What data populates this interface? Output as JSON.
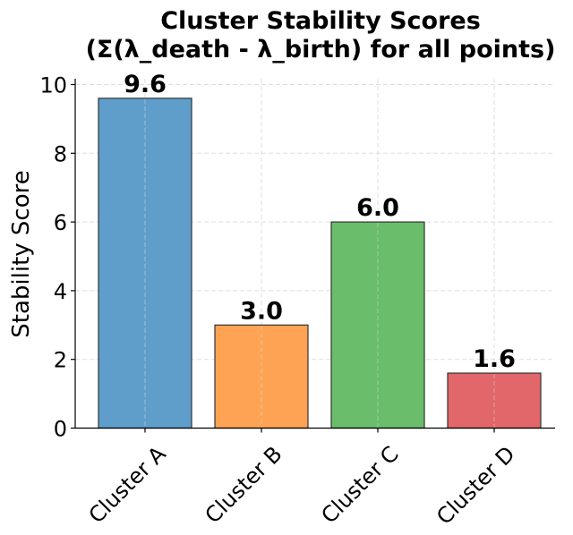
{
  "chart_data": {
    "type": "bar",
    "title": "Cluster Stability Scores",
    "subtitle": "(Σ(λ_death - λ_birth) for all points)",
    "xlabel": "",
    "ylabel": "Stability Score",
    "categories": [
      "Cluster A",
      "Cluster B",
      "Cluster C",
      "Cluster D"
    ],
    "values": [
      9.6,
      3.0,
      6.0,
      1.6
    ],
    "value_labels": [
      "9.6",
      "3.0",
      "6.0",
      "1.6"
    ],
    "colors": [
      "#5f9ecb",
      "#fea353",
      "#6abd6b",
      "#e2676a"
    ],
    "ylim": [
      0,
      10
    ],
    "yticks": [
      "0",
      "2",
      "4",
      "6",
      "8",
      "10"
    ],
    "grid": true,
    "legend": null
  }
}
